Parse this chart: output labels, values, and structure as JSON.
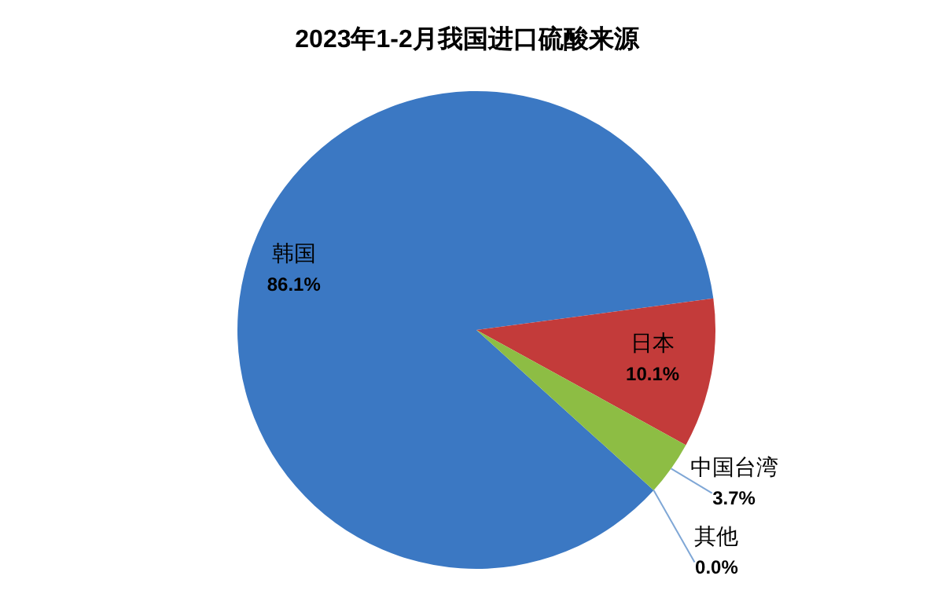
{
  "chart_data": {
    "type": "pie",
    "title": "2023年1-2月我国进口硫酸来源",
    "categories": [
      "韩国",
      "日本",
      "中国台湾",
      "其他"
    ],
    "values": [
      86.1,
      10.1,
      3.7,
      0.0
    ],
    "value_labels": [
      "86.1%",
      "10.1%",
      "3.7%",
      "0.0%"
    ],
    "colors": [
      "#3b78c3",
      "#c33b3a",
      "#8dbd44",
      "#7fb0e0"
    ]
  }
}
